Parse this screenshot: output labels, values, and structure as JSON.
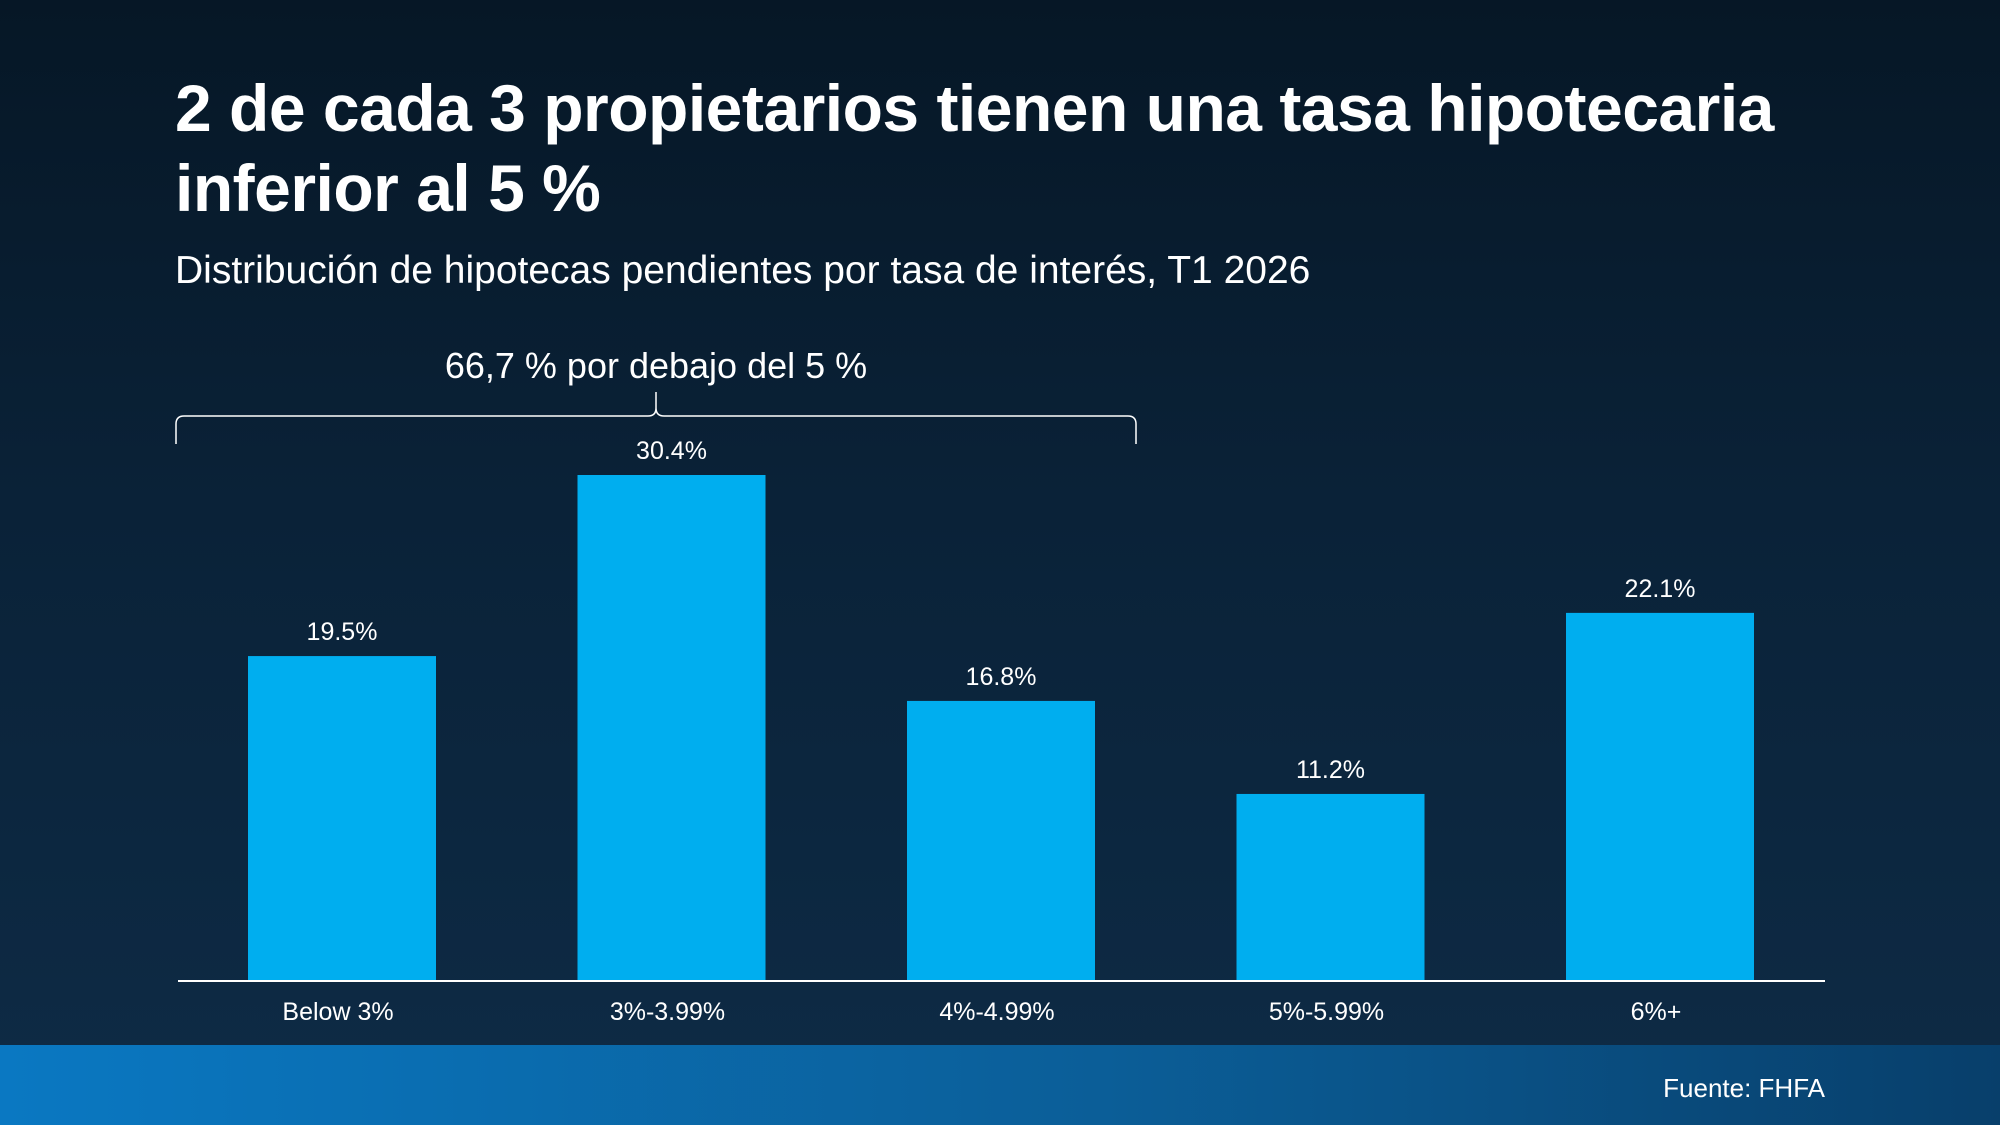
{
  "header": {
    "title": "2 de cada 3 propietarios tienen una tasa hipotecaria inferior al 5 %",
    "subtitle": "Distribución de hipotecas pendientes por tasa de interés, T1 2026"
  },
  "annotation": {
    "bracket_label": "66,7 % por debajo del 5 %"
  },
  "footer": {
    "source": "Fuente: FHFA"
  },
  "colors": {
    "bar": "#00AEEF",
    "axis": "#FFFFFF"
  },
  "chart_data": {
    "type": "bar",
    "title": "2 de cada 3 propietarios tienen una tasa hipotecaria inferior al 5 %",
    "subtitle": "Distribución de hipotecas pendientes por tasa de interés, T1 2026",
    "categories": [
      "Below 3%",
      "3%-3.99%",
      "4%-4.99%",
      "5%-5.99%",
      "6%+"
    ],
    "values": [
      19.5,
      30.4,
      16.8,
      11.2,
      22.1
    ],
    "value_labels": [
      "19.5%",
      "30.4%",
      "16.8%",
      "11.2%",
      "22.1%"
    ],
    "ylim": [
      0,
      30.4
    ],
    "grid": false,
    "annotations": [
      {
        "text": "66,7 % por debajo del 5 %",
        "spans_categories": [
          "Below 3%",
          "3%-3.99%",
          "4%-4.99%"
        ]
      }
    ]
  }
}
